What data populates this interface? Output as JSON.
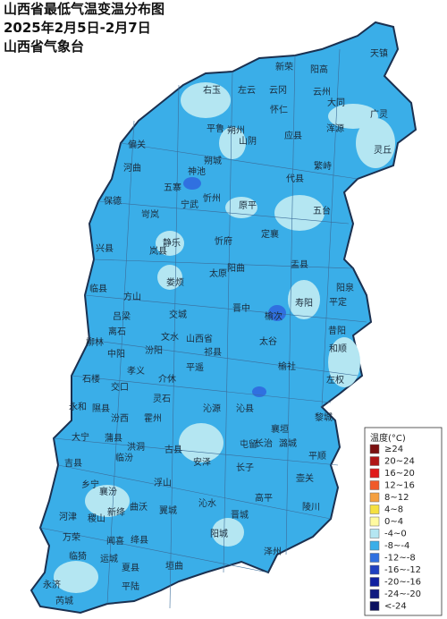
{
  "header": {
    "lines": [
      "山西省最低气温变温分布图",
      "2025年2月5日-2月7日",
      "山西省气象台"
    ]
  },
  "legend": {
    "title": "温度(°C)",
    "items": [
      {
        "label": "≥24",
        "color": "#7b1010"
      },
      {
        "label": "20~24",
        "color": "#b01515"
      },
      {
        "label": "16~20",
        "color": "#e01a1a"
      },
      {
        "label": "12~16",
        "color": "#f05a2a"
      },
      {
        "label": "8~12",
        "color": "#f5a040"
      },
      {
        "label": "4~8",
        "color": "#f5e040"
      },
      {
        "label": "0~4",
        "color": "#fffaa0"
      },
      {
        "label": "-4~0",
        "color": "#b4e6f2"
      },
      {
        "label": "-8~-4",
        "color": "#3aaee8"
      },
      {
        "label": "-12~-8",
        "color": "#3070e0"
      },
      {
        "label": "-16~-12",
        "color": "#2040c0"
      },
      {
        "label": "-20~-16",
        "color": "#1020a0"
      },
      {
        "label": "-24~-20",
        "color": "#101a80"
      },
      {
        "label": "<-24",
        "color": "#0a1060"
      }
    ]
  },
  "map": {
    "labels": [
      "新荣",
      "阳高",
      "天镇",
      "右玉",
      "左云",
      "云冈",
      "云州",
      "怀仁",
      "大同",
      "广灵",
      "平鲁",
      "朔州",
      "山阴",
      "应县",
      "浑源",
      "灵丘",
      "偏关",
      "河曲",
      "神池",
      "朔城",
      "繁峙",
      "五寨",
      "宁武",
      "忻州",
      "代县",
      "原平",
      "保德",
      "岢岚",
      "五台",
      "兴县",
      "静乐",
      "忻府",
      "定襄",
      "岚县",
      "盂县",
      "临县",
      "娄烦",
      "太原",
      "阳曲",
      "寿阳",
      "阳泉",
      "平定",
      "方山",
      "吕梁",
      "交城",
      "离石",
      "榆次",
      "晋中",
      "太谷",
      "昔阳",
      "柳林",
      "中阳",
      "文水",
      "汾阳",
      "山西省",
      "祁县",
      "和顺",
      "榆社",
      "孝义",
      "平遥",
      "石楼",
      "交口",
      "介休",
      "左权",
      "灵石",
      "永和",
      "隰县",
      "沁源",
      "沁县",
      "黎城",
      "汾西",
      "霍州",
      "襄垣",
      "长治",
      "大宁",
      "蒲县",
      "洪洞",
      "古县",
      "屯留",
      "潞城",
      "平顺",
      "吉县",
      "临汾",
      "安泽",
      "长子",
      "壶关",
      "乡宁",
      "浮山",
      "高平",
      "陵川",
      "襄汾",
      "沁水",
      "河津",
      "稷山",
      "新绛",
      "曲沃",
      "翼城",
      "晋城",
      "闻喜",
      "绛县",
      "万荣",
      "阳城",
      "临猗",
      "运城",
      "夏县",
      "垣曲",
      "泽州",
      "永济",
      "平陆",
      "芮城"
    ]
  }
}
